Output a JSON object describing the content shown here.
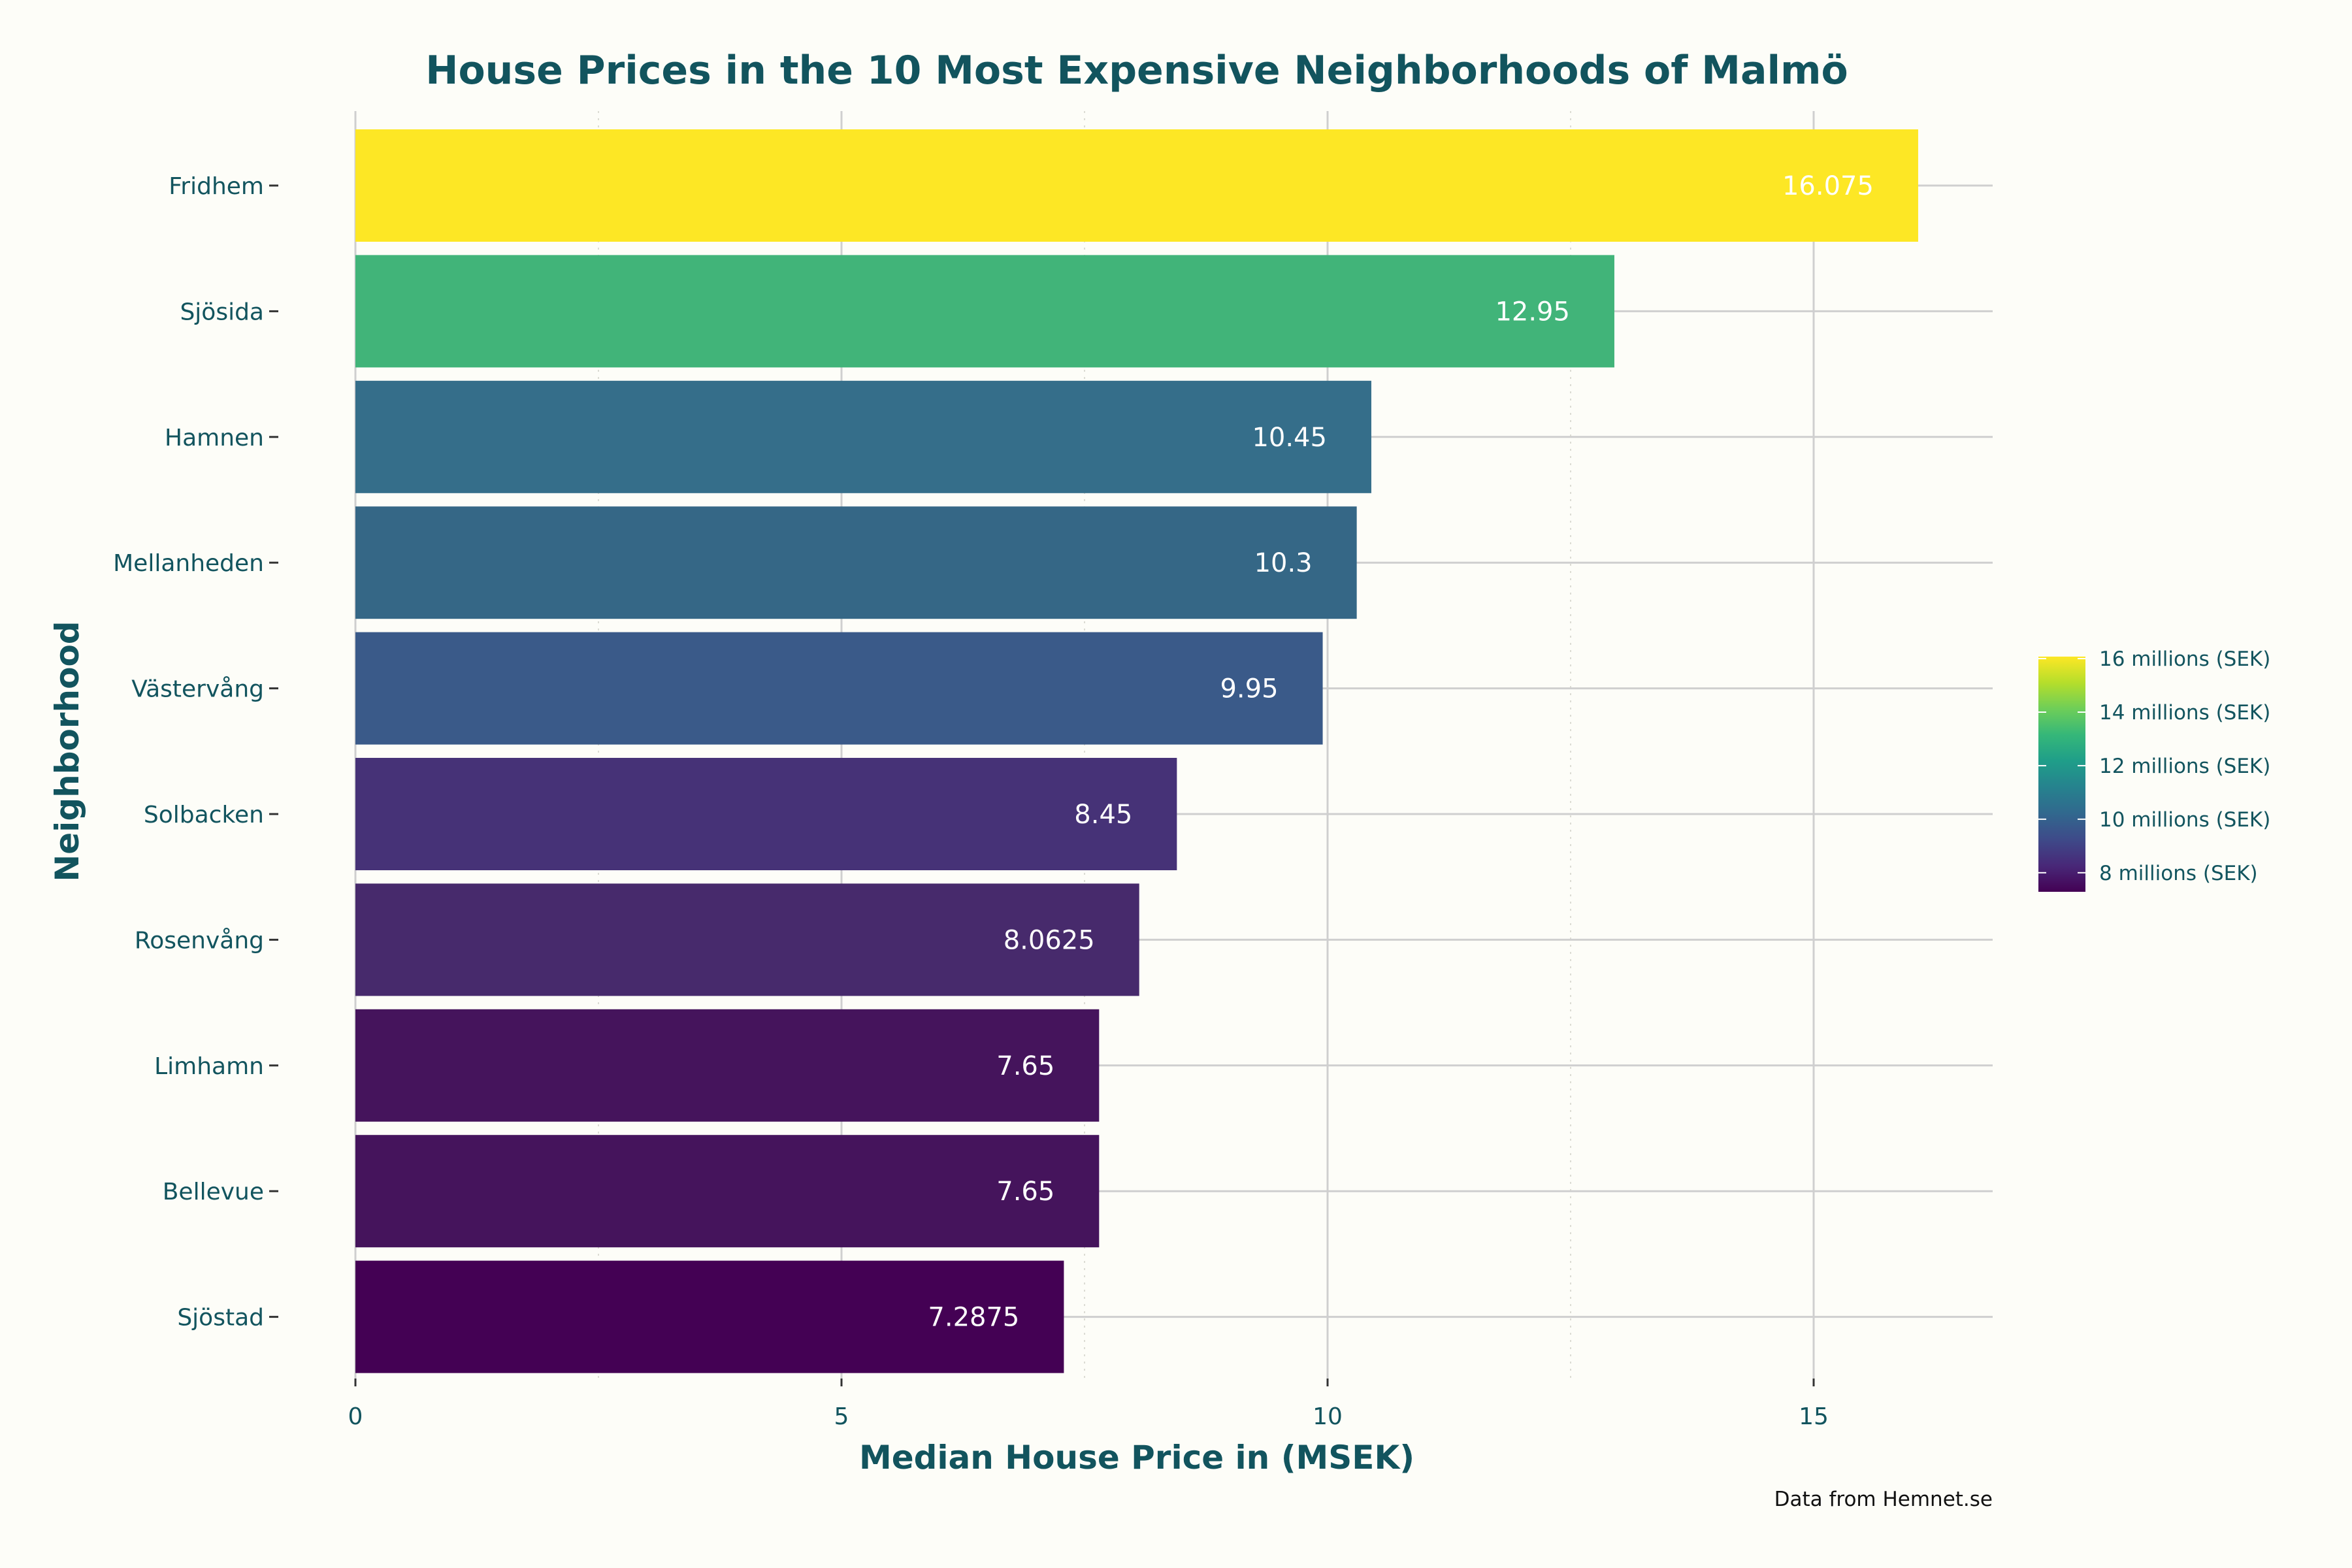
{
  "chart_data": {
    "type": "bar",
    "orientation": "horizontal",
    "title": "House Prices in the 10 Most Expensive Neighborhoods of Malmö",
    "xlabel": "Median House Price in (MSEK)",
    "ylabel": "Neighborhood",
    "caption": "Data from Hemnet.se",
    "xlim": [
      0,
      16.875
    ],
    "x_ticks": [
      0,
      5,
      10,
      15
    ],
    "grid": "vertical major and minor lines, horizontal line per category",
    "categories": [
      "Fridhem",
      "Sjösida",
      "Hamnen",
      "Mellanheden",
      "Västervång",
      "Solbacken",
      "Rosenvång",
      "Limhamn",
      "Bellevue",
      "Sjöstad"
    ],
    "values": [
      16.075,
      12.95,
      10.45,
      10.3,
      9.95,
      8.45,
      8.0625,
      7.65,
      7.65,
      7.2875
    ],
    "data_labels": [
      "16.075",
      "12.95",
      "10.45",
      "10.3",
      "9.95",
      "8.45",
      "8.0625",
      "7.65",
      "7.65",
      "7.2875"
    ],
    "colors": [
      "#fde725",
      "#41b479",
      "#356e8a",
      "#356786",
      "#3a5a89",
      "#463277",
      "#472a6c",
      "#45145c",
      "#45145c",
      "#440154"
    ],
    "legend": {
      "placement": "right",
      "type": "colorbar",
      "range": [
        7.2875,
        16.075
      ],
      "gradient": [
        "#440154",
        "#482878",
        "#3e4a89",
        "#31688e",
        "#26828e",
        "#1f9e89",
        "#35b779",
        "#6ece58",
        "#b5de2b",
        "#fde725"
      ],
      "entries": [
        {
          "value": 16,
          "label": "16 millions (SEK)"
        },
        {
          "value": 14,
          "label": "14 millions (SEK)"
        },
        {
          "value": 12,
          "label": "12 millions (SEK)"
        },
        {
          "value": 10,
          "label": "10 millions (SEK)"
        },
        {
          "value": 8,
          "label": "8 millions (SEK)"
        }
      ]
    }
  }
}
